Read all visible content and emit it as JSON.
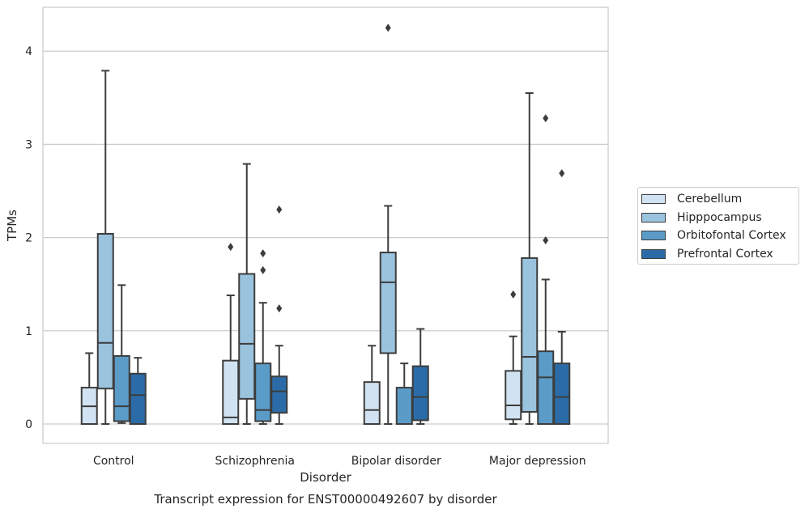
{
  "chart_data": {
    "type": "box",
    "title": "Transcript expression for ENST00000492607 by disorder",
    "xlabel": "Disorder",
    "ylabel": "TPMs",
    "ylim": [
      -0.2,
      4.47
    ],
    "yticks": [
      0,
      1,
      2,
      3,
      4
    ],
    "grid": true,
    "legend_position": "right",
    "categories": [
      "Control",
      "Schizophrenia",
      "Bipolar disorder",
      "Major depression"
    ],
    "series": [
      {
        "name": "Cerebellum",
        "color": "#d1e2f2",
        "boxes": [
          {
            "min": 0.0,
            "q1": 0.0,
            "median": 0.19,
            "q3": 0.39,
            "max": 0.76,
            "outliers": []
          },
          {
            "min": 0.0,
            "q1": 0.0,
            "median": 0.07,
            "q3": 0.68,
            "max": 1.38,
            "outliers": [
              1.9
            ]
          },
          {
            "min": 0.0,
            "q1": 0.0,
            "median": 0.15,
            "q3": 0.45,
            "max": 0.84,
            "outliers": []
          },
          {
            "min": 0.0,
            "q1": 0.05,
            "median": 0.2,
            "q3": 0.57,
            "max": 0.94,
            "outliers": [
              1.39
            ]
          }
        ]
      },
      {
        "name": "Hipppocampus",
        "color": "#9ac3de",
        "boxes": [
          {
            "min": 0.0,
            "q1": 0.38,
            "median": 0.87,
            "q3": 2.04,
            "max": 3.79,
            "outliers": []
          },
          {
            "min": 0.0,
            "q1": 0.27,
            "median": 0.86,
            "q3": 1.61,
            "max": 2.79,
            "outliers": []
          },
          {
            "min": 0.0,
            "q1": 0.76,
            "median": 1.52,
            "q3": 1.84,
            "max": 2.34,
            "outliers": [
              4.25
            ]
          },
          {
            "min": 0.0,
            "q1": 0.13,
            "median": 0.72,
            "q3": 1.78,
            "max": 3.55,
            "outliers": []
          }
        ]
      },
      {
        "name": "Orbitofontal Cortex",
        "color": "#5b9bc8",
        "boxes": [
          {
            "min": 0.01,
            "q1": 0.03,
            "median": 0.19,
            "q3": 0.73,
            "max": 1.49,
            "outliers": []
          },
          {
            "min": 0.0,
            "q1": 0.03,
            "median": 0.15,
            "q3": 0.65,
            "max": 1.3,
            "outliers": [
              1.65,
              1.83
            ]
          },
          {
            "min": 0.0,
            "q1": 0.0,
            "median": 0.0,
            "q3": 0.39,
            "max": 0.65,
            "outliers": []
          },
          {
            "min": 0.0,
            "q1": 0.0,
            "median": 0.5,
            "q3": 0.78,
            "max": 1.55,
            "outliers": [
              1.97,
              3.28
            ]
          }
        ]
      },
      {
        "name": "Prefrontal Cortex",
        "color": "#2b6ca8",
        "boxes": [
          {
            "min": 0.0,
            "q1": 0.0,
            "median": 0.31,
            "q3": 0.54,
            "max": 0.71,
            "outliers": []
          },
          {
            "min": 0.0,
            "q1": 0.12,
            "median": 0.35,
            "q3": 0.51,
            "max": 0.84,
            "outliers": [
              1.24,
              2.3
            ]
          },
          {
            "min": 0.0,
            "q1": 0.04,
            "median": 0.29,
            "q3": 0.62,
            "max": 1.02,
            "outliers": []
          },
          {
            "min": 0.0,
            "q1": 0.0,
            "median": 0.29,
            "q3": 0.65,
            "max": 0.99,
            "outliers": [
              2.69
            ]
          }
        ]
      }
    ]
  }
}
